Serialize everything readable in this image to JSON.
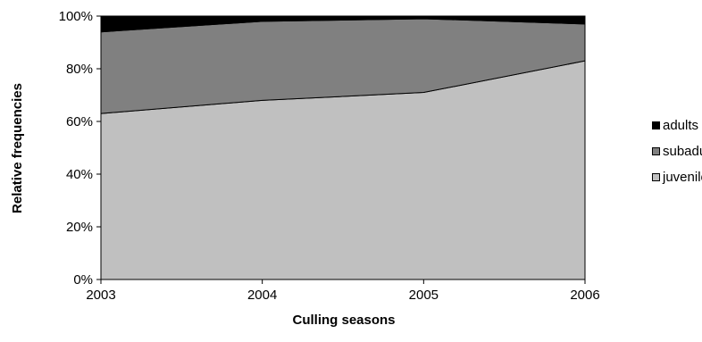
{
  "chart_data": {
    "type": "area",
    "stacked": "percent",
    "title": "",
    "xlabel": "Culling seasons",
    "ylabel": "Relative frequencies",
    "x": [
      "2003",
      "2004",
      "2005",
      "2006"
    ],
    "ylim": [
      0,
      100
    ],
    "yticks": [
      "0%",
      "20%",
      "40%",
      "60%",
      "80%",
      "100%"
    ],
    "grid": false,
    "legend_position": "right",
    "series": [
      {
        "name": "juveniles",
        "values": [
          63,
          68,
          71,
          83
        ],
        "color": "#c0c0c0"
      },
      {
        "name": "subadults",
        "values": [
          31,
          30,
          28,
          14
        ],
        "color": "#808080"
      },
      {
        "name": "adults",
        "values": [
          6,
          2,
          1,
          3
        ],
        "color": "#000000"
      }
    ],
    "legend_order": [
      "adults",
      "subadults",
      "juveniles"
    ]
  }
}
